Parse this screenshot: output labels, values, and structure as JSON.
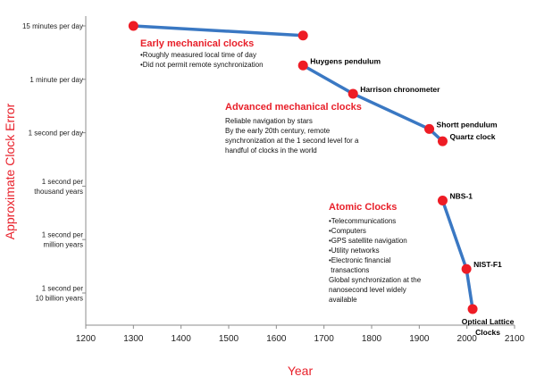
{
  "chart_data": {
    "type": "line",
    "xlabel": "Year",
    "ylabel": "Approximate Clock Error",
    "xlim": [
      1200,
      2100
    ],
    "xticks": [
      1200,
      1300,
      1400,
      1500,
      1600,
      1700,
      1800,
      1900,
      2000,
      2100
    ],
    "yticks": [
      {
        "label": [
          "15 minutes per day"
        ],
        "level": 0
      },
      {
        "label": [
          "1 minute per day"
        ],
        "level": 1
      },
      {
        "label": [
          "1 second per day"
        ],
        "level": 2
      },
      {
        "label": [
          "1 second per",
          "thousand years"
        ],
        "level": 3
      },
      {
        "label": [
          "1 second per",
          "million  years"
        ],
        "level": 4
      },
      {
        "label": [
          "1 second per",
          "10 billion years"
        ],
        "level": 5
      }
    ],
    "grid": false,
    "colors": {
      "series": "#3a78c3",
      "point": "#ee1c25",
      "annotation_title": "#e8202a",
      "axis_title": "#e8202a"
    },
    "series": [
      {
        "points": [
          {
            "x": 1300,
            "y": 0.0
          },
          {
            "x": 1656,
            "y": 0.18
          }
        ]
      },
      {
        "points": [
          {
            "x": 1656,
            "y": 0.74,
            "label": "Huygens pendulum"
          },
          {
            "x": 1761,
            "y": 1.27,
            "label": "Harrison chronometer"
          },
          {
            "x": 1921,
            "y": 1.93,
            "label": "Shortt pendulum"
          },
          {
            "x": 1949,
            "y": 2.16,
            "label": "Quartz clock"
          }
        ]
      },
      {
        "points": [
          {
            "x": 1949,
            "y": 3.27,
            "label": "NBS-1"
          },
          {
            "x": 1999,
            "y": 4.55,
            "label": "NIST-F1"
          },
          {
            "x": 2012,
            "y": 5.3,
            "label": [
              "Optical Lattice",
              "Clocks"
            ]
          }
        ]
      }
    ],
    "annotations": [
      {
        "title": "Early mechanical clocks",
        "lines": [
          "•Roughly measured local time of day",
          "•Did not permit remote synchronization"
        ]
      },
      {
        "title": "Advanced mechanical clocks",
        "lines": [
          "Reliable navigation by stars",
          "",
          "By the early 20th century, remote",
          "synchronization at the 1 second level for a",
          "handful of clocks in the world"
        ]
      },
      {
        "title": "Atomic Clocks",
        "lines": [
          "•Telecommunications",
          "•Computers",
          "•GPS satellite navigation",
          "•Utility networks",
          "•Electronic financial",
          "  transactions",
          "",
          "Global synchronization at the",
          "nanosecond level widely",
          "available"
        ]
      }
    ]
  }
}
